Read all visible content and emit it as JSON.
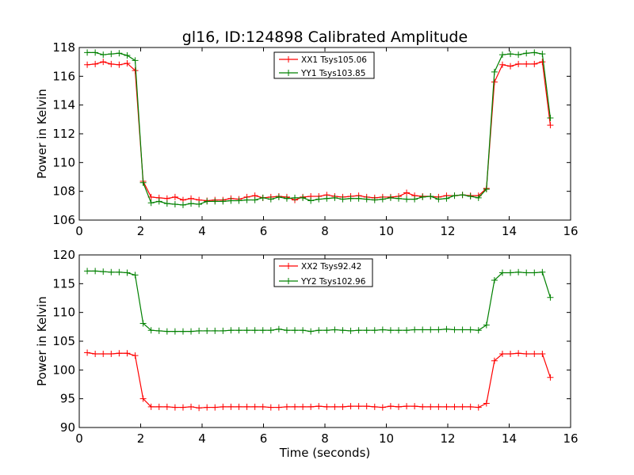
{
  "title": "gl16, ID:124898 Calibrated Amplitude",
  "xlabel": "Time (seconds)",
  "colors": {
    "red": "#ff0000",
    "green": "#008000"
  },
  "chart_data": [
    {
      "type": "line",
      "ylabel": "Power in Kelvin",
      "xlim": [
        0,
        16
      ],
      "ylim": [
        106,
        118
      ],
      "xticks": [
        0,
        2,
        4,
        6,
        8,
        10,
        12,
        14,
        16
      ],
      "yticks": [
        106,
        108,
        110,
        112,
        114,
        116,
        118
      ],
      "grid": false,
      "legend_position": "top-center",
      "x": [
        0.26,
        0.52,
        0.78,
        1.04,
        1.3,
        1.56,
        1.82,
        2.08,
        2.34,
        2.6,
        2.86,
        3.12,
        3.38,
        3.64,
        3.9,
        4.16,
        4.42,
        4.68,
        4.94,
        5.2,
        5.46,
        5.72,
        5.98,
        6.24,
        6.5,
        6.76,
        7.02,
        7.28,
        7.54,
        7.8,
        8.06,
        8.32,
        8.58,
        8.84,
        9.1,
        9.36,
        9.62,
        9.88,
        10.14,
        10.4,
        10.66,
        10.92,
        11.18,
        11.44,
        11.7,
        11.96,
        12.22,
        12.48,
        12.74,
        13.0,
        13.26,
        13.52,
        13.78,
        14.04,
        14.3,
        14.56,
        14.82,
        15.08,
        15.34
      ],
      "series": [
        {
          "name": "XX1 Tsys105.06",
          "color": "#ff0000",
          "values": [
            116.8,
            116.85,
            117.0,
            116.85,
            116.8,
            116.9,
            116.4,
            108.7,
            107.6,
            107.55,
            107.5,
            107.6,
            107.4,
            107.5,
            107.4,
            107.35,
            107.4,
            107.4,
            107.5,
            107.45,
            107.6,
            107.7,
            107.55,
            107.6,
            107.65,
            107.6,
            107.4,
            107.6,
            107.65,
            107.65,
            107.75,
            107.65,
            107.6,
            107.65,
            107.7,
            107.6,
            107.55,
            107.6,
            107.6,
            107.65,
            107.9,
            107.7,
            107.65,
            107.65,
            107.6,
            107.7,
            107.7,
            107.75,
            107.7,
            107.7,
            108.2,
            115.6,
            116.8,
            116.7,
            116.85,
            116.85,
            116.85,
            117.0,
            112.6
          ]
        },
        {
          "name": "YY1 Tsys103.85",
          "color": "#008000",
          "values": [
            117.65,
            117.65,
            117.5,
            117.55,
            117.6,
            117.45,
            117.1,
            108.6,
            107.2,
            107.3,
            107.15,
            107.1,
            107.05,
            107.15,
            107.1,
            107.3,
            107.3,
            107.3,
            107.35,
            107.35,
            107.4,
            107.4,
            107.55,
            107.45,
            107.6,
            107.5,
            107.55,
            107.55,
            107.35,
            107.45,
            107.5,
            107.55,
            107.45,
            107.5,
            107.5,
            107.45,
            107.4,
            107.45,
            107.55,
            107.5,
            107.45,
            107.45,
            107.6,
            107.65,
            107.45,
            107.5,
            107.7,
            107.75,
            107.65,
            107.55,
            108.15,
            116.3,
            117.5,
            117.55,
            117.5,
            117.6,
            117.65,
            117.55,
            113.1
          ]
        }
      ]
    },
    {
      "type": "line",
      "ylabel": "Power in Kelvin",
      "xlabel": "Time (seconds)",
      "xlim": [
        0,
        16
      ],
      "ylim": [
        90,
        120
      ],
      "xticks": [
        0,
        2,
        4,
        6,
        8,
        10,
        12,
        14,
        16
      ],
      "yticks": [
        90,
        95,
        100,
        105,
        110,
        115,
        120
      ],
      "grid": false,
      "legend_position": "top-center",
      "x": [
        0.26,
        0.52,
        0.78,
        1.04,
        1.3,
        1.56,
        1.82,
        2.08,
        2.34,
        2.6,
        2.86,
        3.12,
        3.38,
        3.64,
        3.9,
        4.16,
        4.42,
        4.68,
        4.94,
        5.2,
        5.46,
        5.72,
        5.98,
        6.24,
        6.5,
        6.76,
        7.02,
        7.28,
        7.54,
        7.8,
        8.06,
        8.32,
        8.58,
        8.84,
        9.1,
        9.36,
        9.62,
        9.88,
        10.14,
        10.4,
        10.66,
        10.92,
        11.18,
        11.44,
        11.7,
        11.96,
        12.22,
        12.48,
        12.74,
        13.0,
        13.26,
        13.52,
        13.78,
        14.04,
        14.3,
        14.56,
        14.82,
        15.08,
        15.34
      ],
      "series": [
        {
          "name": "XX2 Tsys92.42",
          "color": "#ff0000",
          "values": [
            103.0,
            102.8,
            102.8,
            102.8,
            102.9,
            102.9,
            102.5,
            95.0,
            93.6,
            93.6,
            93.6,
            93.5,
            93.5,
            93.6,
            93.4,
            93.5,
            93.5,
            93.6,
            93.6,
            93.6,
            93.6,
            93.6,
            93.6,
            93.5,
            93.5,
            93.6,
            93.6,
            93.6,
            93.6,
            93.7,
            93.6,
            93.6,
            93.6,
            93.7,
            93.7,
            93.7,
            93.6,
            93.5,
            93.7,
            93.6,
            93.7,
            93.7,
            93.6,
            93.6,
            93.6,
            93.6,
            93.6,
            93.6,
            93.6,
            93.5,
            94.2,
            101.6,
            102.8,
            102.8,
            102.9,
            102.8,
            102.8,
            102.8,
            98.7
          ]
        },
        {
          "name": "YY2 Tsys102.96",
          "color": "#008000",
          "values": [
            117.2,
            117.2,
            117.1,
            117.0,
            117.0,
            116.9,
            116.5,
            108.1,
            106.9,
            106.8,
            106.7,
            106.7,
            106.7,
            106.7,
            106.8,
            106.8,
            106.8,
            106.8,
            106.9,
            106.9,
            106.9,
            106.9,
            106.9,
            106.9,
            107.1,
            106.9,
            106.9,
            106.9,
            106.7,
            106.9,
            106.9,
            107.0,
            106.9,
            106.8,
            106.9,
            106.9,
            106.9,
            107.0,
            106.9,
            106.9,
            106.9,
            107.0,
            107.0,
            107.0,
            107.0,
            107.1,
            107.0,
            107.0,
            107.0,
            106.9,
            107.8,
            115.6,
            116.9,
            116.9,
            117.0,
            116.9,
            116.9,
            117.0,
            112.6
          ]
        }
      ]
    }
  ]
}
